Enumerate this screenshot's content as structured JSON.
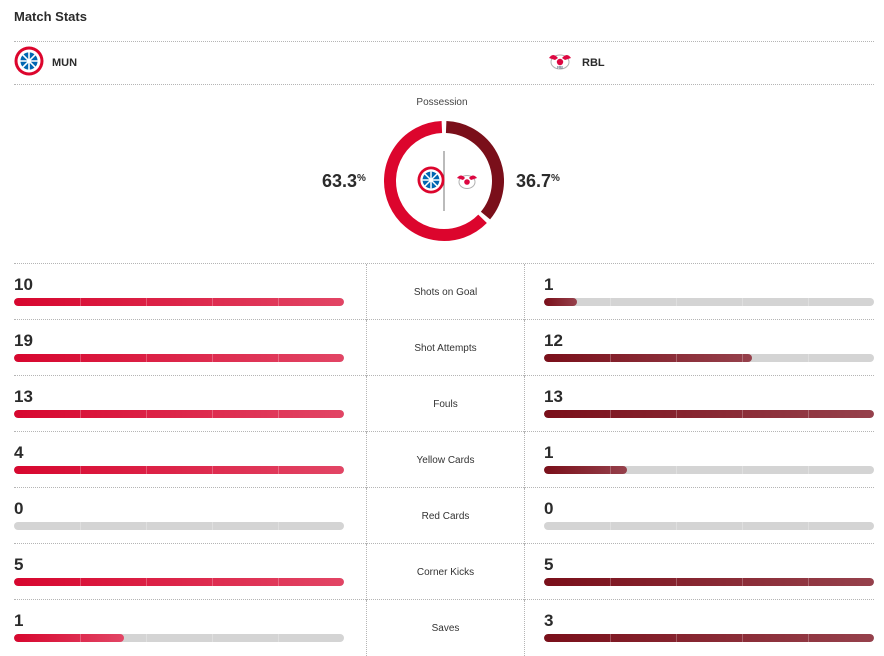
{
  "header": {
    "title": "Match Stats"
  },
  "teams": {
    "home": {
      "code": "MUN",
      "color": "#dc052d",
      "logo_icon": "bayern-crest-icon"
    },
    "away": {
      "code": "RBL",
      "color": "#7a0f1a",
      "logo_icon": "rb-leipzig-crest-icon"
    }
  },
  "possession": {
    "label": "Possession",
    "home_value": "63.3",
    "away_value": "36.7",
    "unit": "%",
    "home_fraction": 0.633
  },
  "stats": [
    {
      "label": "Shots on Goal",
      "home": 10,
      "away": 1
    },
    {
      "label": "Shot Attempts",
      "home": 19,
      "away": 12
    },
    {
      "label": "Fouls",
      "home": 13,
      "away": 13
    },
    {
      "label": "Yellow Cards",
      "home": 4,
      "away": 1
    },
    {
      "label": "Red Cards",
      "home": 0,
      "away": 0
    },
    {
      "label": "Corner Kicks",
      "home": 5,
      "away": 5
    },
    {
      "label": "Saves",
      "home": 1,
      "away": 3
    }
  ]
}
